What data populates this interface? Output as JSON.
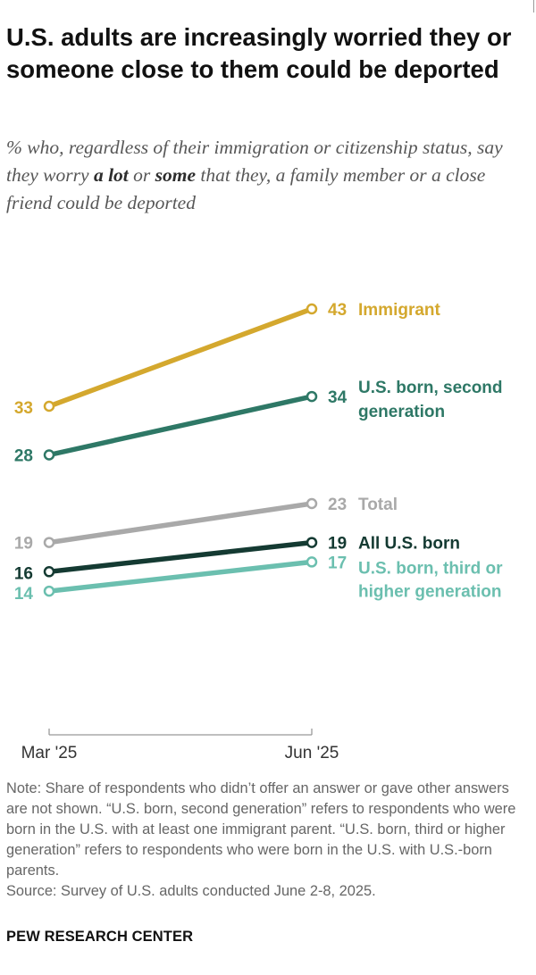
{
  "title": "U.S. adults are increasingly worried they or someone close to them could be deported",
  "subtitle": {
    "before": "% who, regardless of their immigration or citizenship status, say they worry ",
    "em1": "a lot",
    "mid": " or ",
    "em2": "some",
    "after": " that they, a family member or a close friend could be deported"
  },
  "chart_data": {
    "type": "line",
    "x": [
      "Mar '25",
      "Jun '25"
    ],
    "grid": false,
    "legend": "direct labels at line ends",
    "series": [
      {
        "name": "Immigrant",
        "values": [
          33,
          43
        ],
        "color": "#d4a82e"
      },
      {
        "name": "U.S. born, second generation",
        "values": [
          28,
          34
        ],
        "color": "#2e7866"
      },
      {
        "name": "Total",
        "values": [
          19,
          23
        ],
        "color": "#a9a9a9"
      },
      {
        "name": "All U.S. born",
        "values": [
          16,
          19
        ],
        "color": "#143a32"
      },
      {
        "name": "U.S. born, third or higher generation",
        "values": [
          14,
          17
        ],
        "color": "#6bbfaf"
      }
    ]
  },
  "note": "Note: Share of respondents who didn’t offer an answer or gave other answers are not shown. “U.S. born, second generation” refers to respondents who were born in the U.S. with at least one immigrant parent. “U.S. born, third or higher generation” refers to respondents who were born in the U.S. with U.S.-born parents.",
  "source": "Source: Survey of U.S. adults conducted June 2-8, 2025.",
  "brand": "PEW RESEARCH CENTER"
}
